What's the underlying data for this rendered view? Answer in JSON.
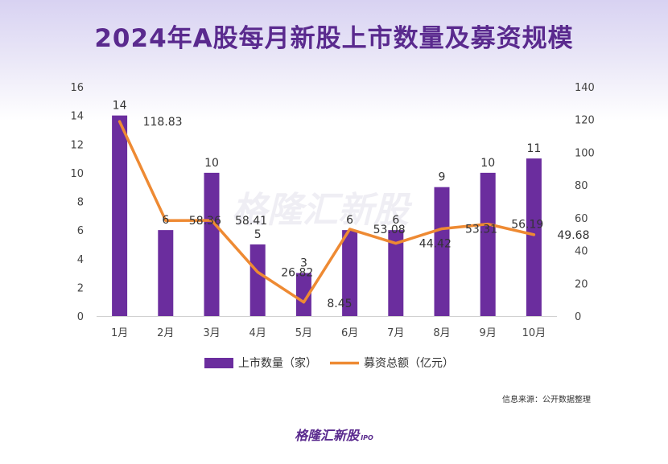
{
  "title": "2024年A股每月新股上市数量及募资规模",
  "source_note": "信息来源：公开数据整理",
  "brand": {
    "name": "格隆汇新股",
    "suffix": "IPO"
  },
  "watermark": "格隆汇新股",
  "colors": {
    "bar": "#6b2d9e",
    "line": "#ee8a33",
    "title": "#5a2a8e"
  },
  "chart_data": {
    "type": "bar",
    "title": "2024年A股每月新股上市数量及募资规模",
    "categories": [
      "1月",
      "2月",
      "3月",
      "4月",
      "5月",
      "6月",
      "7月",
      "8月",
      "9月",
      "10月"
    ],
    "series": [
      {
        "name": "上市数量（家）",
        "type": "bar",
        "axis": "left",
        "values": [
          14,
          6,
          10,
          5,
          3,
          6,
          6,
          9,
          10,
          11
        ]
      },
      {
        "name": "募资总额（亿元）",
        "type": "line",
        "axis": "right",
        "values": [
          118.83,
          58.36,
          58.41,
          26.82,
          8.45,
          53.08,
          44.42,
          53.31,
          56.19,
          49.68
        ]
      }
    ],
    "y_left": {
      "min": 0,
      "max": 16,
      "ticks": [
        0,
        2,
        4,
        6,
        8,
        10,
        12,
        14,
        16
      ]
    },
    "y_right": {
      "min": 0,
      "max": 140,
      "ticks": [
        0,
        20,
        40,
        60,
        80,
        100,
        120,
        140
      ]
    },
    "grid": false,
    "legend": "bottom"
  }
}
